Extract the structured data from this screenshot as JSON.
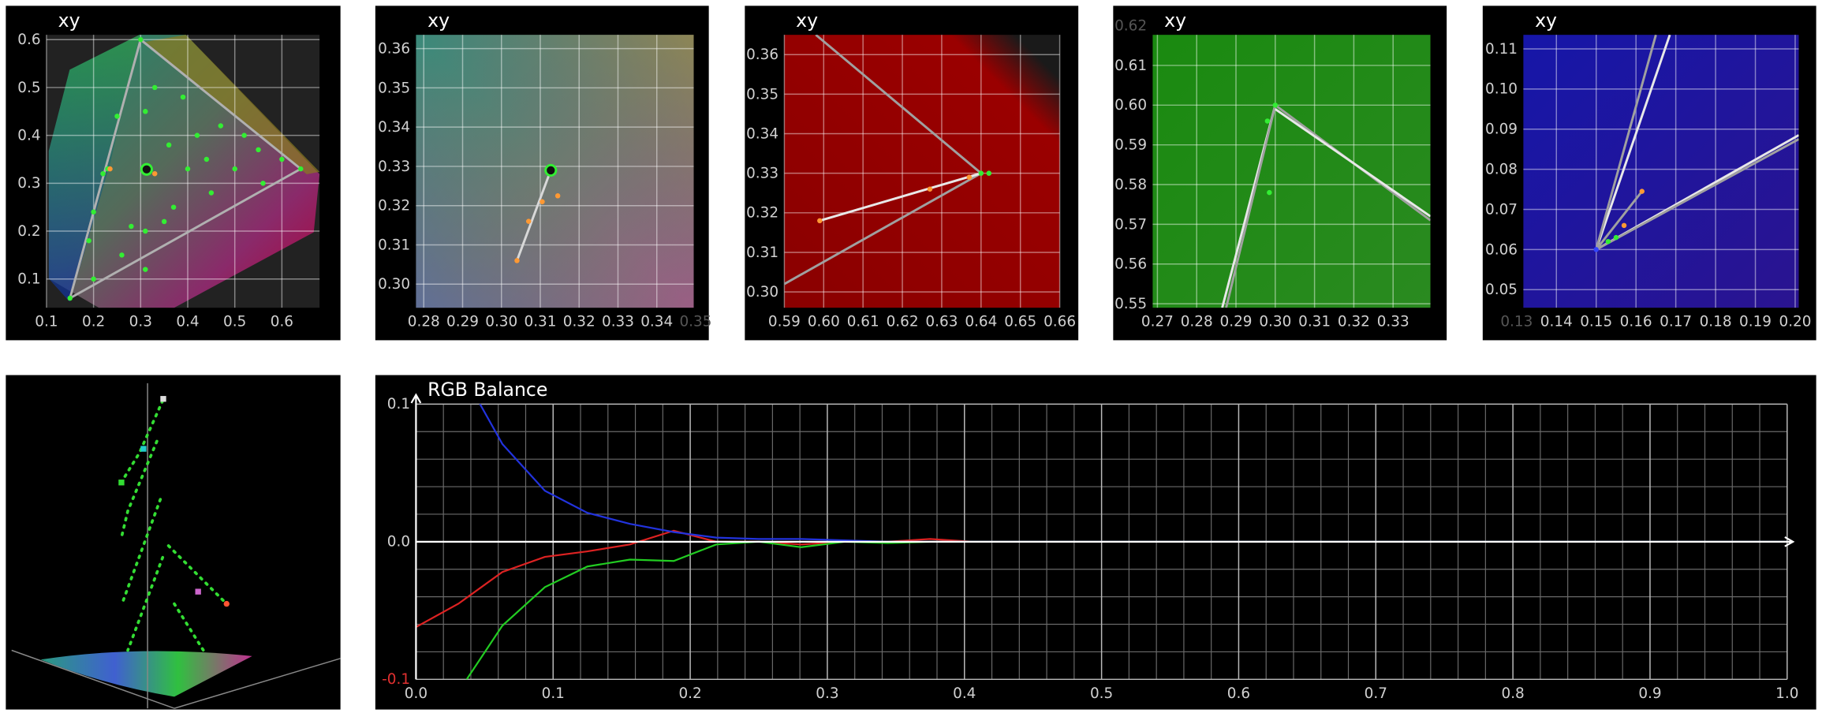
{
  "chart_data": [
    {
      "type": "scatter",
      "title": "xy",
      "xlim": [
        0.1,
        0.68
      ],
      "ylim": [
        0.04,
        0.61
      ],
      "xticks": [
        0.1,
        0.2,
        0.3,
        0.4,
        0.5,
        0.6
      ],
      "yticks": [
        0.1,
        0.2,
        0.3,
        0.4,
        0.5,
        0.6
      ],
      "grid": true,
      "series": [
        {
          "style": "line",
          "color": "#b0b0b0",
          "x": [
            0.64,
            0.3,
            0.15,
            0.64
          ],
          "values": [
            0.33,
            0.6,
            0.06,
            0.33
          ]
        },
        {
          "style": "points",
          "color": "#33ee33",
          "x": [
            0.64,
            0.3,
            0.15,
            0.55,
            0.47,
            0.39,
            0.25,
            0.22,
            0.19,
            0.4,
            0.5,
            0.23,
            0.2,
            0.35,
            0.45,
            0.56,
            0.28,
            0.33,
            0.42,
            0.37,
            0.26,
            0.31,
            0.31,
            0.31,
            0.2,
            0.6,
            0.52,
            0.44,
            0.36
          ],
          "values": [
            0.33,
            0.6,
            0.06,
            0.37,
            0.42,
            0.48,
            0.44,
            0.32,
            0.18,
            0.33,
            0.33,
            0.33,
            0.1,
            0.22,
            0.28,
            0.3,
            0.21,
            0.5,
            0.4,
            0.25,
            0.15,
            0.12,
            0.2,
            0.45,
            0.24,
            0.35,
            0.4,
            0.35,
            0.38
          ]
        },
        {
          "style": "points",
          "color": "#ff9933",
          "x": [
            0.235,
            0.33
          ],
          "values": [
            0.33,
            0.32
          ]
        },
        {
          "style": "ring",
          "color": "#33ee33",
          "x": [
            0.3127
          ],
          "values": [
            0.329
          ]
        }
      ]
    },
    {
      "type": "scatter",
      "title": "xy",
      "xlim": [
        0.278,
        0.3495
      ],
      "ylim": [
        0.294,
        0.3635
      ],
      "xticks": [
        0.28,
        0.29,
        {
          "value": 0.3,
          "label": "0.30"
        },
        0.31,
        0.32,
        0.33,
        0.34,
        0.35
      ],
      "yticks": [
        {
          "value": 0.3,
          "label": "0.30"
        },
        0.31,
        0.32,
        0.33,
        0.34,
        0.35,
        0.36
      ],
      "grid": true,
      "series": [
        {
          "style": "line",
          "color": "#d8d8d8",
          "x": [
            0.304,
            0.3127
          ],
          "values": [
            0.306,
            0.329
          ]
        },
        {
          "style": "points",
          "color": "#ff9933",
          "x": [
            0.304,
            0.307,
            0.3105,
            0.3145
          ],
          "values": [
            0.306,
            0.316,
            0.321,
            0.3225
          ]
        },
        {
          "style": "ring",
          "color": "#33ee33",
          "x": [
            0.3127
          ],
          "values": [
            0.329
          ]
        }
      ]
    },
    {
      "type": "scatter",
      "title": "xy",
      "xlim": [
        0.59,
        0.66
      ],
      "ylim": [
        0.296,
        0.365
      ],
      "xticks": [
        0.59,
        {
          "value": 0.6,
          "label": "0.60"
        },
        0.61,
        0.62,
        0.63,
        0.64,
        0.65,
        0.66
      ],
      "yticks": [
        {
          "value": 0.3,
          "label": "0.30"
        },
        0.31,
        0.32,
        0.33,
        0.34,
        0.35,
        0.36
      ],
      "grid": true,
      "series": [
        {
          "style": "line",
          "color": "#a0a0a0",
          "x": [
            0.598,
            0.64
          ],
          "values": [
            0.365,
            0.33
          ]
        },
        {
          "style": "line",
          "color": "#a0a0a0",
          "x": [
            0.59,
            0.64
          ],
          "values": [
            0.302,
            0.33
          ]
        },
        {
          "style": "line",
          "color": "#e8e8e8",
          "x": [
            0.599,
            0.64
          ],
          "values": [
            0.318,
            0.33
          ]
        },
        {
          "style": "points",
          "color": "#ff9933",
          "x": [
            0.599,
            0.627,
            0.637
          ],
          "values": [
            0.318,
            0.326,
            0.329
          ]
        },
        {
          "style": "points",
          "color": "#33ee33",
          "x": [
            0.64,
            0.642
          ],
          "values": [
            0.33,
            0.33
          ]
        }
      ]
    },
    {
      "type": "scatter",
      "title": "xy",
      "xlim": [
        0.2688,
        0.3395
      ],
      "ylim": [
        0.549,
        0.6177
      ],
      "xticks": [
        0.27,
        0.28,
        0.29,
        {
          "value": 0.3,
          "label": "0.30"
        },
        0.31,
        0.32,
        0.33
      ],
      "yticks": [
        0.55,
        0.56,
        0.57,
        0.58,
        0.59,
        {
          "value": 0.6,
          "label": "0.60"
        },
        0.61,
        0.62
      ],
      "grid": true,
      "series": [
        {
          "style": "line",
          "color": "#e8e8e8",
          "x": [
            0.2865,
            0.3
          ],
          "values": [
            0.549,
            0.6
          ]
        },
        {
          "style": "line",
          "color": "#a0a0a0",
          "x": [
            0.2875,
            0.3
          ],
          "values": [
            0.549,
            0.6
          ]
        },
        {
          "style": "line",
          "color": "#a0a0a0",
          "x": [
            0.3,
            0.3395
          ],
          "values": [
            0.6,
            0.571
          ]
        },
        {
          "style": "line",
          "color": "#e8e8e8",
          "x": [
            0.3,
            0.3395
          ],
          "values": [
            0.599,
            0.572
          ]
        },
        {
          "style": "points",
          "color": "#33ee33",
          "x": [
            0.3,
            0.2985,
            0.298
          ],
          "values": [
            0.6,
            0.578,
            0.596
          ]
        }
      ]
    },
    {
      "type": "scatter",
      "title": "xy",
      "xlim": [
        0.1317,
        0.2009
      ],
      "ylim": [
        0.0455,
        0.1135
      ],
      "xticks": [
        0.13,
        0.14,
        0.15,
        0.16,
        0.17,
        0.18,
        0.19,
        {
          "value": 0.2,
          "label": "0.20"
        }
      ],
      "yticks": [
        0.05,
        0.06,
        0.07,
        0.08,
        0.09,
        {
          "value": 0.1,
          "label": "0.10"
        },
        0.11
      ],
      "grid": true,
      "series": [
        {
          "style": "line",
          "color": "#e8e8e8",
          "x": [
            0.15,
            0.1685
          ],
          "values": [
            0.06,
            0.1135
          ]
        },
        {
          "style": "line",
          "color": "#a0a0a0",
          "x": [
            0.15,
            0.165
          ],
          "values": [
            0.06,
            0.1135
          ]
        },
        {
          "style": "line",
          "color": "#e8e8e8",
          "x": [
            0.15,
            0.2009
          ],
          "values": [
            0.06,
            0.0885
          ]
        },
        {
          "style": "line",
          "color": "#a0a0a0",
          "x": [
            0.15,
            0.2009
          ],
          "values": [
            0.06,
            0.0875
          ]
        },
        {
          "style": "line",
          "color": "#a0a0a0",
          "x": [
            0.15,
            0.1615
          ],
          "values": [
            0.06,
            0.0745
          ]
        },
        {
          "style": "points",
          "color": "#ff9933",
          "x": [
            0.1615,
            0.157
          ],
          "values": [
            0.0745,
            0.066
          ]
        },
        {
          "style": "points",
          "color": "#33ee33",
          "x": [
            0.153,
            0.155
          ],
          "values": [
            0.062,
            0.063
          ]
        },
        {
          "style": "points",
          "color": "#3344ff",
          "x": [
            0.15
          ],
          "values": [
            0.06
          ]
        }
      ]
    },
    {
      "type": "line",
      "title": "RGB Balance",
      "xlim": [
        0,
        1
      ],
      "ylim": [
        -0.1,
        0.1
      ],
      "xticks": [
        {
          "value": 0,
          "label": "0.0"
        },
        0.1,
        0.2,
        0.3,
        0.4,
        0.5,
        0.6,
        0.7,
        0.8,
        0.9,
        {
          "value": 1,
          "label": "1.0"
        }
      ],
      "yticks": [
        {
          "value": -0.1,
          "label": "-0.1"
        },
        {
          "value": 0,
          "label": "0.0"
        },
        0.1
      ],
      "grid": true,
      "minor_grid": 5,
      "x": [
        0,
        0.031,
        0.063,
        0.094,
        0.125,
        0.156,
        0.188,
        0.219,
        0.25,
        0.281,
        0.313,
        0.344,
        0.375,
        0.406,
        0.438,
        0.469,
        0.5,
        0.531,
        0.563,
        0.594,
        0.625,
        0.656,
        0.688,
        0.719,
        0.75,
        0.781,
        0.813,
        0.844,
        0.875,
        0.906,
        0.938,
        0.969,
        1.0
      ],
      "series": [
        {
          "color": "#dd2222",
          "values": [
            -0.062,
            -0.045,
            -0.022,
            -0.011,
            -0.007,
            -0.002,
            0.008,
            0,
            0,
            -0.002,
            0,
            0,
            0.002,
            0,
            0,
            0,
            0,
            0,
            0,
            0,
            0,
            0,
            0,
            0,
            0,
            0,
            0,
            0,
            0,
            0,
            0,
            0,
            0
          ]
        },
        {
          "color": "#22cc22",
          "values": [
            null,
            -0.109,
            -0.061,
            -0.033,
            -0.018,
            -0.013,
            -0.014,
            -0.002,
            0,
            -0.004,
            0,
            -0.001,
            0,
            0,
            0,
            0,
            0,
            0,
            0,
            0,
            0,
            0,
            0,
            0,
            0,
            0,
            0,
            0,
            0,
            0,
            0,
            0,
            0
          ]
        },
        {
          "color": "#2233dd",
          "values": [
            null,
            0.128,
            0.071,
            0.037,
            0.021,
            0.013,
            0.007,
            0.003,
            0.002,
            0.002,
            0.001,
            0,
            0,
            0,
            0,
            0,
            0,
            0,
            0,
            0,
            0,
            0,
            0,
            0,
            0,
            0,
            0,
            0,
            0,
            0,
            0,
            0,
            0
          ]
        }
      ]
    }
  ]
}
